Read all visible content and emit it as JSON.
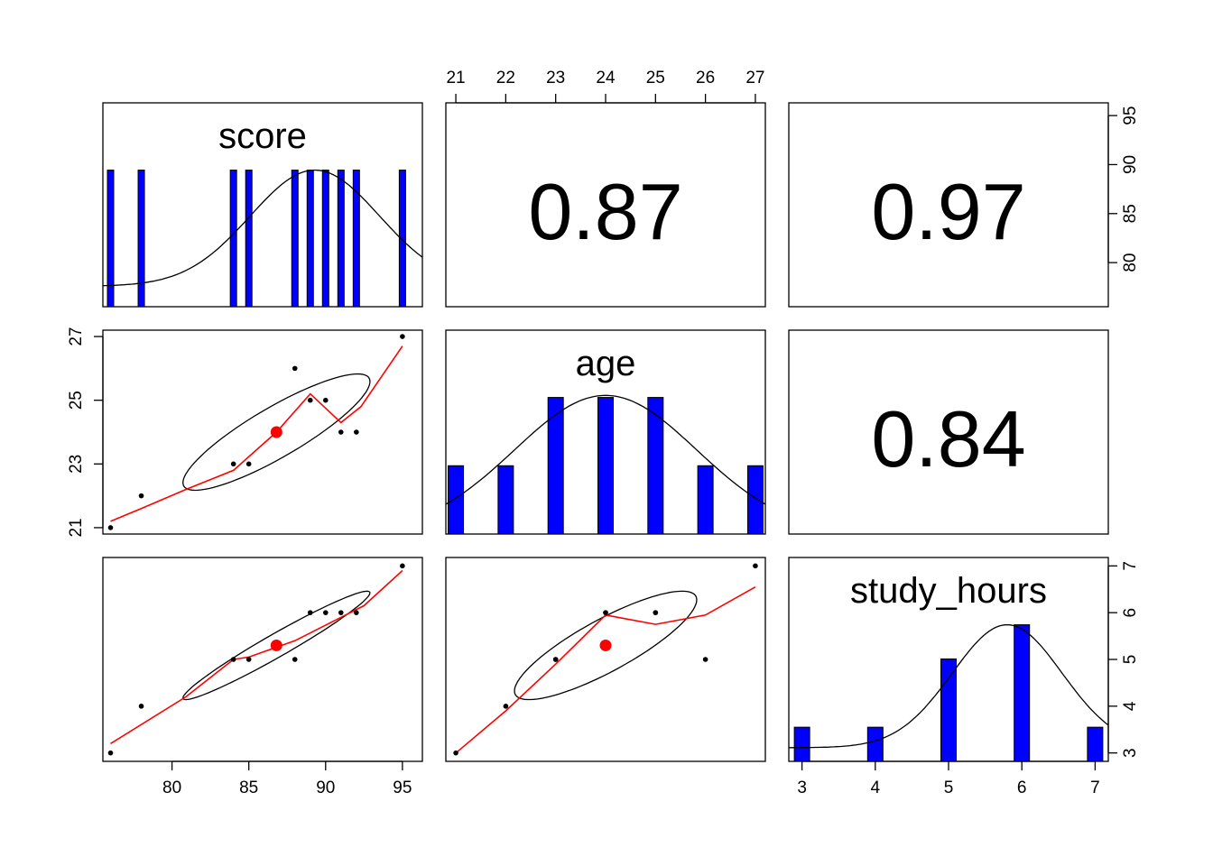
{
  "chart_data": {
    "type": "scatter",
    "variables": [
      "score",
      "age",
      "study_hours"
    ],
    "observations": {
      "score": [
        76,
        78,
        84,
        85,
        88,
        89,
        90,
        91,
        92,
        95
      ],
      "age": [
        21,
        22,
        23,
        23,
        26,
        25,
        25,
        24,
        24,
        27
      ],
      "study_hours": [
        3,
        4,
        5,
        5,
        5,
        6,
        6,
        6,
        6,
        7
      ]
    },
    "means": {
      "score": 86.8,
      "age": 24.0,
      "study_hours": 5.3
    },
    "correlations": [
      {
        "row": "score",
        "col": "age",
        "value": "0.87"
      },
      {
        "row": "score",
        "col": "study_hours",
        "value": "0.97"
      },
      {
        "row": "age",
        "col": "study_hours",
        "value": "0.84"
      }
    ],
    "ranges": {
      "score": [
        75.5,
        96.3
      ],
      "age": [
        20.8,
        27.2
      ],
      "study_hours": [
        2.82,
        7.18
      ]
    },
    "histograms": {
      "score": {
        "bins": [
          76,
          78,
          84,
          85,
          88,
          89,
          90,
          91,
          92,
          95
        ],
        "counts": [
          1,
          1,
          1,
          1,
          1,
          1,
          1,
          1,
          1,
          1
        ]
      },
      "age": {
        "bins": [
          21,
          22,
          23,
          24,
          25,
          26,
          27
        ],
        "counts": [
          1,
          1,
          2,
          2,
          2,
          1,
          1
        ]
      },
      "study_hours": {
        "bins": [
          3,
          4,
          5,
          6,
          7
        ],
        "counts": [
          1,
          1,
          3,
          4,
          1
        ]
      }
    },
    "loess": {
      "score_vs_age": [
        [
          76,
          21.2
        ],
        [
          78,
          21.6
        ],
        [
          80.9,
          22.2
        ],
        [
          84,
          22.8
        ],
        [
          86.8,
          24.0
        ],
        [
          89,
          25.2
        ],
        [
          91,
          24.3
        ],
        [
          92.3,
          24.8
        ],
        [
          95,
          26.7
        ]
      ],
      "score_vs_study_hours": [
        [
          76,
          3.2
        ],
        [
          80.9,
          4.2
        ],
        [
          84,
          5.0
        ],
        [
          85,
          5.05
        ],
        [
          88,
          5.4
        ],
        [
          92.5,
          6.15
        ],
        [
          95,
          6.9
        ]
      ],
      "age_vs_study_hours": [
        [
          21,
          3.0
        ],
        [
          22,
          3.9
        ],
        [
          23,
          4.9
        ],
        [
          24,
          5.95
        ],
        [
          25,
          5.75
        ],
        [
          26,
          5.95
        ],
        [
          27,
          6.55
        ]
      ]
    },
    "axis_ticks": {
      "top": [
        21,
        22,
        23,
        24,
        25,
        26,
        27
      ],
      "bottom_left": [
        80,
        85,
        90,
        95
      ],
      "bottom_right": [
        3,
        4,
        5,
        6,
        7
      ],
      "left_middle": [
        21,
        23,
        25,
        27
      ],
      "right_top": [
        80,
        85,
        90,
        95
      ],
      "right_bottom": [
        3,
        4,
        5,
        6,
        7
      ]
    },
    "colors": {
      "hist": "#0000FF",
      "fit": "#FF0000",
      "mean_point": "#FF0000",
      "ellipse": "#000000",
      "points": "#000000"
    },
    "grid": false
  }
}
